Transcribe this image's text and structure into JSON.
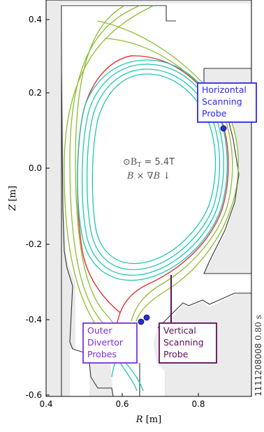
{
  "axes": {
    "xlabel_var": "R",
    "xlabel_unit": "[m]",
    "ylabel_var": "Z",
    "ylabel_unit": "[m]",
    "xticks": [
      "0.4",
      "0.6",
      "0.8"
    ],
    "yticks": [
      "0.4",
      "0.2",
      "0.0",
      "-0.2",
      "-0.4",
      "-0.6"
    ]
  },
  "center_text": {
    "field_prefix": "⊙B",
    "field_sub": "T",
    "field_value": " = 5.4T",
    "drift": "B × ∇B ↓"
  },
  "labels": {
    "horizontal_probe": [
      "Horizontal",
      "Scanning",
      "Probe"
    ],
    "vertical_probe": [
      "Vertical",
      "Scanning",
      "Probe"
    ],
    "outer_divertor": [
      "Outer",
      "Divertor",
      "Probes"
    ]
  },
  "shot_label": "1111208008",
  "time_label": "0.80 s",
  "colors": {
    "horizontal_probe": "#2a2aee",
    "vertical_probe": "#5c0e5c",
    "outer_divertor": "#7b2fe0",
    "separatrix": "#e23434",
    "sol": "#8bbd2f",
    "core": "#1fc6b2",
    "wall_fill": "#ebebeb"
  }
}
